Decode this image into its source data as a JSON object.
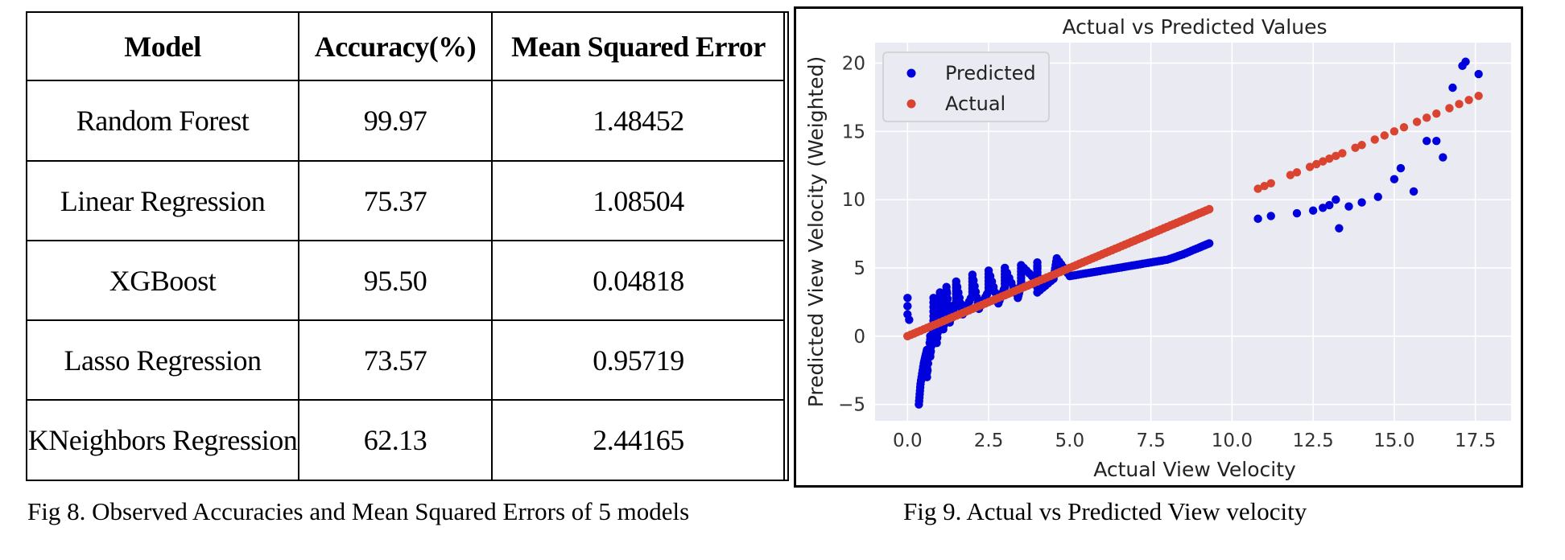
{
  "table": {
    "headers": [
      "Model",
      "Accuracy(%)",
      "Mean Squared Error"
    ],
    "rows": [
      [
        "Random Forest",
        "99.97",
        "1.48452"
      ],
      [
        "Linear Regression",
        "75.37",
        "1.08504"
      ],
      [
        "XGBoost",
        "95.50",
        "0.04818"
      ],
      [
        "Lasso Regression",
        "73.57",
        "0.95719"
      ],
      [
        "KNeighbors Regression",
        "62.13",
        "2.44165"
      ]
    ]
  },
  "captions": {
    "fig8": "Fig 8. Observed Accuracies and Mean Squared Errors of 5 models",
    "fig9": "Fig 9. Actual vs Predicted View velocity"
  },
  "chart_data": {
    "type": "scatter",
    "title": "Actual vs Predicted Values",
    "xlabel": "Actual View Velocity",
    "ylabel": "Predicted View Velocity (Weighted)",
    "xlim": [
      -1.0,
      18.6
    ],
    "ylim": [
      -6.2,
      21.5
    ],
    "xticks": [
      0.0,
      2.5,
      5.0,
      7.5,
      10.0,
      12.5,
      15.0,
      17.5
    ],
    "xtick_labels": [
      "0.0",
      "2.5",
      "5.0",
      "7.5",
      "10.0",
      "12.5",
      "15.0",
      "17.5"
    ],
    "yticks": [
      -5,
      0,
      5,
      10,
      15,
      20
    ],
    "ytick_labels": [
      "−5",
      "0",
      "5",
      "10",
      "15",
      "20"
    ],
    "grid": true,
    "legend_position": "top-left",
    "colors": {
      "predicted": "#0000dd",
      "actual": "#d9432f",
      "plot_bg": "#eaeaf2"
    },
    "series": [
      {
        "name": "Predicted",
        "color": "#0000dd",
        "points": [
          [
            0.0,
            2.8
          ],
          [
            0.0,
            2.2
          ],
          [
            0.0,
            1.6
          ],
          [
            0.05,
            1.2
          ],
          [
            0.35,
            -5.0
          ],
          [
            0.4,
            -3.5
          ],
          [
            0.5,
            -2.0
          ],
          [
            0.6,
            -1.0
          ],
          [
            0.7,
            0.0
          ],
          [
            0.8,
            0.8
          ],
          [
            0.9,
            1.4
          ],
          [
            1.0,
            1.8
          ],
          [
            1.2,
            2.2
          ],
          [
            1.5,
            2.6
          ],
          [
            2.0,
            3.0
          ],
          [
            2.5,
            3.3
          ],
          [
            3.0,
            3.6
          ],
          [
            3.5,
            3.8
          ],
          [
            4.0,
            4.0
          ],
          [
            4.5,
            4.2
          ],
          [
            5.0,
            4.4
          ],
          [
            5.5,
            4.6
          ],
          [
            6.0,
            4.8
          ],
          [
            6.5,
            5.0
          ],
          [
            7.0,
            5.2
          ],
          [
            7.5,
            5.4
          ],
          [
            8.0,
            5.6
          ],
          [
            8.5,
            6.0
          ],
          [
            9.0,
            6.5
          ],
          [
            9.3,
            6.8
          ],
          [
            0.8,
            2.8
          ],
          [
            1.0,
            3.2
          ],
          [
            1.2,
            3.6
          ],
          [
            1.5,
            4.0
          ],
          [
            2.0,
            4.5
          ],
          [
            2.5,
            4.8
          ],
          [
            3.0,
            5.0
          ],
          [
            3.5,
            5.2
          ],
          [
            4.0,
            5.4
          ],
          [
            4.6,
            5.7
          ],
          [
            0.6,
            -3.0
          ],
          [
            0.7,
            -1.5
          ],
          [
            0.9,
            -0.5
          ],
          [
            1.1,
            0.5
          ],
          [
            1.3,
            1.0
          ],
          [
            1.7,
            1.6
          ],
          [
            2.2,
            2.0
          ],
          [
            2.8,
            2.4
          ],
          [
            3.4,
            2.8
          ],
          [
            4.0,
            3.2
          ],
          [
            10.8,
            8.6
          ],
          [
            11.2,
            8.8
          ],
          [
            12.0,
            9.0
          ],
          [
            12.5,
            9.2
          ],
          [
            12.8,
            9.4
          ],
          [
            13.0,
            9.6
          ],
          [
            13.2,
            10.0
          ],
          [
            13.3,
            7.9
          ],
          [
            13.6,
            9.5
          ],
          [
            14.0,
            9.8
          ],
          [
            14.5,
            10.2
          ],
          [
            15.0,
            11.5
          ],
          [
            15.2,
            12.3
          ],
          [
            15.6,
            10.6
          ],
          [
            16.0,
            14.3
          ],
          [
            16.3,
            14.3
          ],
          [
            16.5,
            13.1
          ],
          [
            16.8,
            18.2
          ],
          [
            17.1,
            19.8
          ],
          [
            17.2,
            20.1
          ],
          [
            17.6,
            19.2
          ]
        ]
      },
      {
        "name": "Actual",
        "color": "#d9432f",
        "x_range": [
          0.0,
          9.3
        ],
        "y_equals_x": true,
        "extra_points": [
          [
            10.8,
            10.8
          ],
          [
            11.0,
            11.0
          ],
          [
            11.2,
            11.2
          ],
          [
            11.8,
            11.8
          ],
          [
            12.0,
            12.0
          ],
          [
            12.4,
            12.4
          ],
          [
            12.6,
            12.6
          ],
          [
            12.8,
            12.8
          ],
          [
            13.0,
            13.0
          ],
          [
            13.2,
            13.2
          ],
          [
            13.4,
            13.4
          ],
          [
            13.8,
            13.8
          ],
          [
            14.0,
            14.0
          ],
          [
            14.4,
            14.4
          ],
          [
            14.7,
            14.7
          ],
          [
            15.0,
            15.0
          ],
          [
            15.3,
            15.3
          ],
          [
            15.7,
            15.7
          ],
          [
            16.0,
            16.0
          ],
          [
            16.3,
            16.3
          ],
          [
            16.7,
            16.7
          ],
          [
            17.0,
            17.0
          ],
          [
            17.3,
            17.3
          ],
          [
            17.6,
            17.6
          ]
        ]
      }
    ]
  }
}
